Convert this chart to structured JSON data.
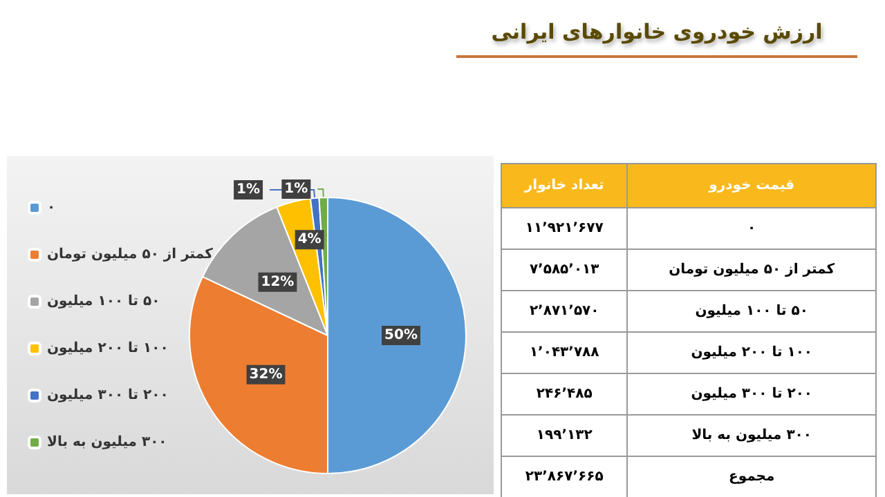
{
  "chart_data": {
    "type": "pie",
    "title": "ارزش خودروی خانوارهای ایرانی",
    "categories": [
      "۰",
      "کمتر از ۵۰ میلیون تومان",
      "۵۰ تا ۱۰۰ میلیون",
      "۱۰۰ تا ۲۰۰ میلیون",
      "۲۰۰ تا ۳۰۰ میلیون",
      "۳۰۰ میلیون به بالا"
    ],
    "values": [
      50,
      32,
      12,
      4,
      1,
      1
    ],
    "colors": [
      "#5b9bd5",
      "#ed7d31",
      "#a5a5a5",
      "#ffc000",
      "#4472c4",
      "#70ad47"
    ],
    "value_labels": [
      "50%",
      "32%",
      "12%",
      "4%",
      "1%",
      "1%"
    ],
    "legend": "left",
    "annotations": [
      "قیمت خودرو",
      "تعداد خانوار",
      "۱۱٬۹۲۱٬۶۷۷",
      "۷٬۵۸۵٬۰۱۳",
      "۲٬۸۷۱٬۵۷۰",
      "۱٬۰۴۳٬۷۸۸",
      "۲۴۶٬۴۸۵",
      "۱۹۹٬۱۳۲",
      "مجموع",
      "۲۳٬۸۶۷٬۶۶۵"
    ]
  }
}
